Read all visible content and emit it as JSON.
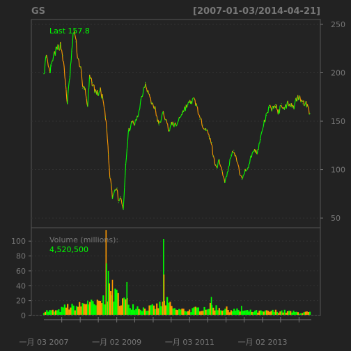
{
  "chart_data": [
    {
      "type": "line",
      "panel": "price",
      "title": "GS",
      "date_range": "[2007-01-03/2014-04-21]",
      "annotation": "Last 157.8",
      "ylim": [
        40,
        255
      ],
      "yticks": [
        50,
        100,
        150,
        200,
        250
      ],
      "grid": true,
      "series": [
        {
          "color": "#33dd22",
          "up_color": "#00ff00",
          "down_color": "#ff9900",
          "x": [
            "2007-01-03",
            "2007-01-25",
            "2007-03-01",
            "2007-03-20",
            "2007-04-20",
            "2007-05-20",
            "2007-06-20",
            "2007-07-10",
            "2007-08-10",
            "2007-08-25",
            "2007-09-20",
            "2007-10-10",
            "2007-10-31",
            "2007-11-20",
            "2007-12-10",
            "2008-01-10",
            "2008-01-25",
            "2008-02-15",
            "2008-03-17",
            "2008-04-05",
            "2008-05-01",
            "2008-06-01",
            "2008-07-01",
            "2008-07-20",
            "2008-08-15",
            "2008-09-10",
            "2008-09-25",
            "2008-10-10",
            "2008-10-25",
            "2008-11-10",
            "2008-11-20",
            "2008-12-10",
            "2009-01-05",
            "2009-01-20",
            "2009-02-10",
            "2009-03-09",
            "2009-04-01",
            "2009-05-01",
            "2009-06-01",
            "2009-07-01",
            "2009-08-01",
            "2009-09-01",
            "2009-10-15",
            "2009-11-20",
            "2009-12-15",
            "2010-01-15",
            "2010-02-10",
            "2010-03-01",
            "2010-04-15",
            "2010-05-10",
            "2010-06-10",
            "2010-07-10",
            "2010-08-20",
            "2010-09-20",
            "2010-10-20",
            "2010-11-15",
            "2010-12-15",
            "2011-01-15",
            "2011-02-15",
            "2011-03-15",
            "2011-04-15",
            "2011-05-15",
            "2011-06-15",
            "2011-07-15",
            "2011-08-10",
            "2011-08-25",
            "2011-09-20",
            "2011-10-05",
            "2011-10-25",
            "2011-11-25",
            "2011-12-20",
            "2012-01-20",
            "2012-02-20",
            "2012-03-20",
            "2012-04-20",
            "2012-05-20",
            "2012-06-10",
            "2012-07-10",
            "2012-08-10",
            "2012-09-10",
            "2012-10-10",
            "2012-11-10",
            "2012-12-10",
            "2013-01-10",
            "2013-02-10",
            "2013-03-10",
            "2013-04-10",
            "2013-05-10",
            "2013-06-10",
            "2013-07-10",
            "2013-08-10",
            "2013-09-10",
            "2013-10-10",
            "2013-11-10",
            "2013-12-10",
            "2014-01-10",
            "2014-02-10",
            "2014-03-10",
            "2014-04-21"
          ],
          "values": [
            199,
            216,
            200,
            207,
            220,
            225,
            229,
            218,
            187,
            168,
            196,
            222,
            246,
            232,
            215,
            204,
            184,
            185,
            166,
            194,
            190,
            181,
            178,
            182,
            173,
            154,
            141,
            116,
            92,
            84,
            70,
            78,
            81,
            66,
            72,
            59,
            105,
            140,
            148,
            147,
            155,
            172,
            190,
            178,
            169,
            165,
            153,
            146,
            159,
            151,
            140,
            148,
            145,
            153,
            159,
            163,
            167,
            170,
            172,
            166,
            152,
            146,
            142,
            134,
            128,
            114,
            105,
            103,
            110,
            98,
            87,
            98,
            115,
            120,
            109,
            96,
            90,
            99,
            102,
            114,
            120,
            118,
            131,
            146,
            156,
            164,
            163,
            167,
            158,
            168,
            162,
            169,
            168,
            164,
            174,
            176,
            168,
            170,
            157.8
          ]
        }
      ]
    },
    {
      "type": "bar",
      "panel": "volume",
      "label": "Volume (millions):",
      "last_value": "4,520,500",
      "ylim": [
        0,
        118
      ],
      "yticks": [
        0,
        20,
        40,
        60,
        80,
        100
      ],
      "grid": true,
      "up_color": "#00ff00",
      "down_color": "#ff9900",
      "x_tick_labels": [
        "一月 03 2007",
        "一月 02 2009",
        "一月 03 2011",
        "一月 02 2013"
      ],
      "x_tick_dates": [
        "2007-01-03",
        "2009-01-02",
        "2011-01-03",
        "2013-01-02"
      ],
      "envelope_x": [
        "2007-01-03",
        "2007-06-01",
        "2007-08-15",
        "2007-11-01",
        "2008-01-15",
        "2008-03-17",
        "2008-06-01",
        "2008-09-15",
        "2008-10-20",
        "2008-12-15",
        "2009-02-15",
        "2009-06-01",
        "2009-10-01",
        "2010-01-20",
        "2010-04-20",
        "2010-05-10",
        "2010-08-01",
        "2011-01-01",
        "2011-08-10",
        "2011-12-01",
        "2012-06-01",
        "2013-01-01",
        "2013-06-20",
        "2014-01-01",
        "2014-04-21"
      ],
      "envelope_values": [
        6,
        6,
        12,
        11,
        14,
        18,
        13,
        24,
        30,
        27,
        22,
        14,
        9,
        11,
        16,
        19,
        8,
        7,
        12,
        9,
        6,
        5,
        6,
        4,
        4
      ],
      "spikes": [
        {
          "date": "2008-03-17",
          "value": 20
        },
        {
          "date": "2008-09-17",
          "value": 115
        },
        {
          "date": "2008-09-22",
          "value": 70
        },
        {
          "date": "2008-10-10",
          "value": 60
        },
        {
          "date": "2008-11-20",
          "value": 48
        },
        {
          "date": "2009-04-14",
          "value": 45
        },
        {
          "date": "2010-04-16",
          "value": 103
        },
        {
          "date": "2010-04-20",
          "value": 55
        },
        {
          "date": "2011-08-08",
          "value": 25
        },
        {
          "date": "2012-06-05",
          "value": 13
        }
      ]
    }
  ]
}
